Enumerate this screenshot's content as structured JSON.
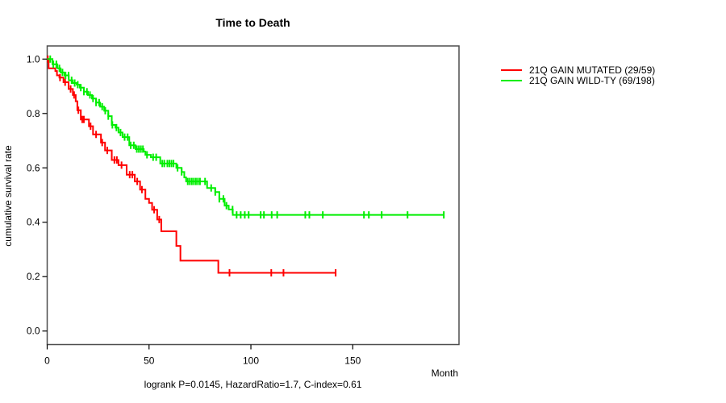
{
  "chart_data": {
    "type": "line",
    "subtype": "kaplan-meier-step",
    "title": "Time to Death",
    "xlabel": "Month",
    "ylabel": "cumulative survival rate",
    "caption": "logrank P=0.0145, HazardRatio=1.7, C-index=0.61",
    "xticks": [
      "0",
      "50",
      "100",
      "150"
    ],
    "xtick_values": [
      0,
      50,
      100,
      150
    ],
    "yticks": [
      "0.0",
      "0.2",
      "0.4",
      "0.6",
      "0.8",
      "1.0"
    ],
    "ytick_values": [
      0.0,
      0.2,
      0.4,
      0.6,
      0.8,
      1.0
    ],
    "xlim": [
      0,
      202
    ],
    "ylim": [
      0.0,
      1.0
    ],
    "grid": false,
    "legend_position": "right-outside-top",
    "background_color": "#ffffff",
    "axis_box_color": "#4d4d4d",
    "tick_color": "#000000",
    "text_color": "#000000",
    "series": [
      {
        "name": "21Q GAIN MUTATED (29/59)",
        "color": "#ff0000",
        "steps": [
          [
            0,
            1.0
          ],
          [
            0.7,
            0.966
          ],
          [
            4,
            0.956
          ],
          [
            4.8,
            0.94
          ],
          [
            6,
            0.932
          ],
          [
            8,
            0.915
          ],
          [
            10.5,
            0.89
          ],
          [
            12.6,
            0.868
          ],
          [
            14,
            0.845
          ],
          [
            14.8,
            0.812
          ],
          [
            16.5,
            0.778
          ],
          [
            20.5,
            0.753
          ],
          [
            22.5,
            0.723
          ],
          [
            26.4,
            0.693
          ],
          [
            28.4,
            0.664
          ],
          [
            31.7,
            0.629
          ],
          [
            35,
            0.61
          ],
          [
            39,
            0.575
          ],
          [
            43,
            0.55
          ],
          [
            45.6,
            0.52
          ],
          [
            48.2,
            0.486
          ],
          [
            50,
            0.471
          ],
          [
            51.5,
            0.446
          ],
          [
            54,
            0.41
          ],
          [
            56,
            0.367
          ],
          [
            63.4,
            0.313
          ],
          [
            65.4,
            0.259
          ],
          [
            84,
            0.214
          ]
        ],
        "end_month": 141.6,
        "censor_months": [
          0.3,
          6.3,
          8.8,
          11.5,
          13.2,
          15.3,
          17.2,
          18.0,
          21.3,
          24.0,
          27.0,
          29.5,
          33.0,
          34.2,
          36.5,
          40.5,
          41.8,
          44.2,
          46.5,
          52.5,
          55.0,
          89.5,
          110,
          116,
          141.6
        ]
      },
      {
        "name": "21Q GAIN WILD-TY (69/198)",
        "color": "#00ee00",
        "steps": [
          [
            0,
            1.0
          ],
          [
            2.6,
            0.981
          ],
          [
            5,
            0.966
          ],
          [
            6.6,
            0.951
          ],
          [
            8.5,
            0.94
          ],
          [
            10.6,
            0.922
          ],
          [
            12.5,
            0.912
          ],
          [
            14.5,
            0.906
          ],
          [
            16,
            0.895
          ],
          [
            18,
            0.88
          ],
          [
            20,
            0.868
          ],
          [
            22,
            0.855
          ],
          [
            24,
            0.84
          ],
          [
            26,
            0.825
          ],
          [
            28,
            0.81
          ],
          [
            30,
            0.79
          ],
          [
            31.7,
            0.758
          ],
          [
            33.5,
            0.748
          ],
          [
            35,
            0.73
          ],
          [
            37,
            0.713
          ],
          [
            40.3,
            0.683
          ],
          [
            43.4,
            0.669
          ],
          [
            47.4,
            0.66
          ],
          [
            48.2,
            0.648
          ],
          [
            50.9,
            0.639
          ],
          [
            55.5,
            0.616
          ],
          [
            63.4,
            0.6
          ],
          [
            66,
            0.585
          ],
          [
            67.3,
            0.565
          ],
          [
            68.2,
            0.55
          ],
          [
            78.5,
            0.526
          ],
          [
            82.5,
            0.511
          ],
          [
            84.5,
            0.486
          ],
          [
            87.1,
            0.461
          ],
          [
            89.1,
            0.447
          ],
          [
            91.1,
            0.427
          ]
        ],
        "end_month": 194.7,
        "censor_months": [
          1.5,
          3,
          4.5,
          6,
          7.5,
          9,
          10.5,
          12,
          13.5,
          15,
          16.5,
          18,
          19.5,
          21,
          22.5,
          24,
          25.5,
          27,
          28.5,
          30,
          32,
          34,
          36,
          38,
          39.5,
          41,
          42.5,
          44,
          45,
          46,
          47,
          49,
          52,
          53.5,
          56.5,
          57.5,
          59,
          60,
          61,
          62,
          64,
          66,
          69,
          70,
          71,
          72,
          73,
          74,
          75,
          77.5,
          80.5,
          82.5,
          84.5,
          86.5,
          88,
          91,
          93,
          95,
          97,
          98.9,
          104.8,
          106.4,
          110.2,
          112.9,
          126.7,
          128.7,
          135.3,
          155.5,
          157.9,
          164.2,
          176.9,
          194.7
        ]
      }
    ]
  }
}
